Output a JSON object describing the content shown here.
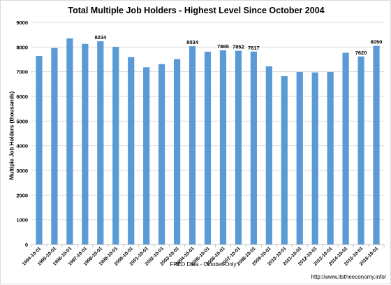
{
  "chart_data": {
    "type": "bar",
    "title": "Total Multiple Job Holders - Highest Level Since October 2004",
    "xlabel": "FRED Data - October Only",
    "ylabel": "Multiple Job Holders (thousands)",
    "ylim": [
      0,
      9000
    ],
    "yticks": [
      0,
      1000,
      2000,
      3000,
      4000,
      5000,
      6000,
      7000,
      8000,
      9000
    ],
    "grid": true,
    "legend": "none",
    "bar_color": "#5b9bd5",
    "categories": [
      "1994-10-01",
      "1995-10-01",
      "1996-10-01",
      "1997-10-01",
      "1998-10-01",
      "1999-10-01",
      "2000-10-01",
      "2001-10-01",
      "2002-10-01",
      "2003-10-01",
      "2004-10-01",
      "2005-10-01",
      "2006-10-01",
      "2007-10-01",
      "2008-10-01",
      "2009-10-01",
      "2010-10-01",
      "2011-10-01",
      "2012-10-01",
      "2013-10-01",
      "2014-10-01",
      "2015-10-01",
      "2016-10-01"
    ],
    "values": [
      7640,
      7960,
      8350,
      8130,
      8234,
      8010,
      7590,
      7180,
      7310,
      7510,
      8034,
      7810,
      7865,
      7852,
      7817,
      7220,
      6820,
      6990,
      6970,
      6990,
      7770,
      7620,
      8050
    ],
    "data_labels": [
      {
        "index": 4,
        "text": "8234"
      },
      {
        "index": 10,
        "text": "8034"
      },
      {
        "index": 12,
        "text": "7865"
      },
      {
        "index": 13,
        "text": "7852"
      },
      {
        "index": 14,
        "text": "7817"
      },
      {
        "index": 21,
        "text": "7620"
      },
      {
        "index": 22,
        "text": "8050"
      }
    ]
  },
  "source_note": "http://www.itstheeconomy.info/"
}
